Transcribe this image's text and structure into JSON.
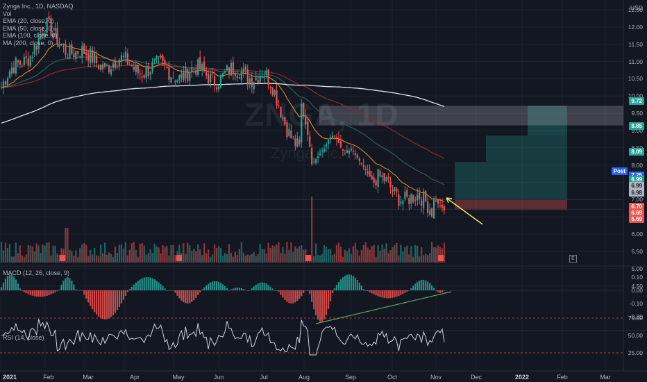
{
  "header": {
    "symbol": "Zynga Inc., 1D, NASDAQ",
    "indicators": [
      "Vol",
      "EMA (20, close, 0)",
      "EMA (50, close, 0)",
      "EMA (100, close, 0)",
      "MA (200, close, 0)"
    ]
  },
  "watermark": {
    "ticker": "ZNGA, 1D",
    "name": "Zynga Inc."
  },
  "currency": "USD",
  "price_axis": [
    "12.50",
    "12.00",
    "11.50",
    "11.00",
    "10.50",
    "10.00",
    "9.50",
    "9.00",
    "8.50",
    "8.00",
    "7.50",
    "7.00",
    "6.50",
    "6.00",
    "5.50",
    "5.00",
    "4.50"
  ],
  "price_badges": [
    {
      "label": "9.72",
      "color": "#26a69a",
      "text": "light"
    },
    {
      "label": "8.85",
      "color": "#26a69a",
      "text": "light"
    },
    {
      "label": "8.09",
      "color": "#26a69a",
      "text": "light"
    },
    {
      "label": "Post",
      "color": "#2962ff",
      "text": "light"
    },
    {
      "label": "7.25",
      "color": "#2962ff",
      "text": "light"
    },
    {
      "label": "6.99",
      "color": "#26a69a",
      "text": "light"
    },
    {
      "label": "6.99",
      "color": "#b2b5be",
      "text": "dark"
    },
    {
      "label": "6.98",
      "color": "#b2b5be",
      "text": "dark"
    },
    {
      "label": "6.70",
      "color": "#ef5350",
      "text": "light"
    },
    {
      "label": "6.69",
      "color": "#ef5350",
      "text": "light"
    },
    {
      "label": "6.69",
      "color": "#ef5350",
      "text": "light"
    }
  ],
  "macd": {
    "label": "MACD (12, 26, close, 9)",
    "axis": [
      "0.10",
      "0.00",
      "-0.10",
      "-0.20"
    ]
  },
  "rsi": {
    "label": "RSI (14, close)",
    "axis": [
      "75.00",
      "50.00",
      "25.00"
    ]
  },
  "time_axis": [
    {
      "label": "2021",
      "bold": true
    },
    {
      "label": "Feb",
      "bold": false
    },
    {
      "label": "Mar",
      "bold": false
    },
    {
      "label": "Apr",
      "bold": false
    },
    {
      "label": "May",
      "bold": false
    },
    {
      "label": "Jun",
      "bold": false
    },
    {
      "label": "Jul",
      "bold": false
    },
    {
      "label": "Aug",
      "bold": false
    },
    {
      "label": "Sep",
      "bold": false
    },
    {
      "label": "Oct",
      "bold": false
    },
    {
      "label": "Nov",
      "bold": false
    },
    {
      "label": "Dec",
      "bold": false
    },
    {
      "label": "2022",
      "bold": true
    },
    {
      "label": "Feb",
      "bold": false
    },
    {
      "label": "Mar",
      "bold": false
    }
  ],
  "earnings_marker": "E",
  "chart_data": {
    "type": "candlestick",
    "price_range": [
      4.5,
      12.6
    ],
    "close_trend": [
      {
        "t": "2021-01",
        "v": 10.2
      },
      {
        "t": "2021-02",
        "v": 11.9
      },
      {
        "t": "2021-03",
        "v": 11.1
      },
      {
        "t": "2021-04",
        "v": 10.9
      },
      {
        "t": "2021-05",
        "v": 10.7
      },
      {
        "t": "2021-06",
        "v": 10.6
      },
      {
        "t": "2021-07",
        "v": 10.7
      },
      {
        "t": "2021-08",
        "v": 8.2
      },
      {
        "t": "2021-09",
        "v": 7.9
      },
      {
        "t": "2021-10",
        "v": 7.3
      },
      {
        "t": "2021-11",
        "v": 6.7
      }
    ],
    "last_price": 6.69,
    "long_position": {
      "entry": 6.99,
      "stop": 6.7,
      "targets": [
        8.09,
        8.85,
        9.72
      ]
    }
  }
}
